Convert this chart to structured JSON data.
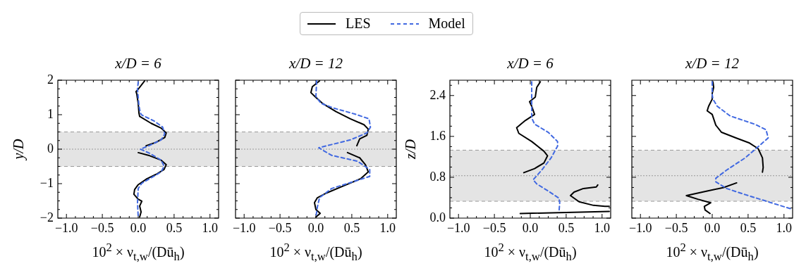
{
  "chart_data": [
    {
      "type": "line",
      "title": "x/D = 6",
      "xlabel": "10$^{2}$ × ν$_{t,w}$/(Dū$_{h}$)",
      "ylabel": "y/D",
      "legend": "top",
      "xlim": [
        -1.12,
        1.12
      ],
      "xticks": [
        {
          "value": -1,
          "label": "−1.0"
        },
        {
          "value": -0.5,
          "label": "−0.5"
        },
        {
          "value": 0,
          "label": "0.0"
        },
        {
          "value": 0.5,
          "label": "0.5"
        },
        {
          "value": 1,
          "label": "1.0"
        }
      ],
      "ylim": [
        -2,
        2
      ],
      "yticks": [
        {
          "value": -2,
          "label": "−2"
        },
        {
          "value": -1,
          "label": "−1"
        },
        {
          "value": 0,
          "label": "0"
        },
        {
          "value": 1,
          "label": "1"
        },
        {
          "value": 2,
          "label": "2"
        }
      ],
      "bands": [
        {
          "axis": "y",
          "from": -0.5,
          "to": 0.5,
          "color": "#e4e4e4"
        }
      ],
      "ref_lines": [
        {
          "axis": "y",
          "value": 0,
          "color": "#999999",
          "line_style": "dotted"
        },
        {
          "axis": "y",
          "value": -0.5,
          "color": "#999999",
          "line_style": "dashed"
        },
        {
          "axis": "y",
          "value": 0.5,
          "color": "#999999",
          "line_style": "dashed"
        }
      ],
      "series": [
        {
          "name": "LES",
          "color": "#000000",
          "line_style": "solid",
          "x": [
            0.09,
            0.0,
            -0.03,
            -0.02,
            0.0,
            0.01,
            0.02,
            0.18,
            0.32,
            0.39,
            0.37,
            0.25,
            0.11,
            null,
            0.0,
            0.16,
            0.32,
            0.39,
            0.36,
            0.25,
            0.12,
            0.0,
            -0.05,
            -0.06,
            0.0,
            0.05,
            0.02,
            0.04,
            0.02
          ],
          "values": [
            1.98,
            1.74,
            1.67,
            1.6,
            1.33,
            1.05,
            0.95,
            0.75,
            0.61,
            0.47,
            0.34,
            0.2,
            0.1,
            null,
            -0.1,
            -0.19,
            -0.32,
            -0.45,
            -0.59,
            -0.73,
            -0.86,
            -1.03,
            -1.17,
            -1.31,
            -1.45,
            -1.51,
            -1.65,
            -1.82,
            -1.97
          ]
        },
        {
          "name": "Model",
          "color": "#4169e1",
          "line_style": "dashed",
          "x": [
            0.0,
            -0.01,
            0.01,
            0.03,
            0.05,
            0.22,
            0.34,
            0.37,
            0.32,
            0.16,
            0.03,
            0.16,
            0.32,
            0.36,
            0.32,
            0.18,
            0.05,
            0.0,
            -0.01,
            0.0
          ],
          "values": [
            1.95,
            1.74,
            1.26,
            1.05,
            0.99,
            0.82,
            0.64,
            0.44,
            0.27,
            0.11,
            0.0,
            -0.12,
            -0.32,
            -0.49,
            -0.66,
            -0.83,
            -0.99,
            -1.14,
            -1.55,
            -1.97
          ]
        }
      ]
    },
    {
      "type": "line",
      "title": "x/D = 12",
      "xlabel": "10$^{2}$ × ν$_{t,w}$/(Dū$_{h}$)",
      "tick_labels": "x",
      "xlim": [
        -1.12,
        1.12
      ],
      "xticks": [
        {
          "value": -1,
          "label": "−1.0"
        },
        {
          "value": -0.5,
          "label": "−0.5"
        },
        {
          "value": 0,
          "label": "0.0"
        },
        {
          "value": 0.5,
          "label": "0.5"
        },
        {
          "value": 1,
          "label": "1.0"
        }
      ],
      "ylim": [
        -2,
        2
      ],
      "yticks": [
        -2,
        -1,
        0,
        1,
        2
      ],
      "bands": [
        {
          "axis": "y",
          "from": -0.5,
          "to": 0.5,
          "color": "#e4e4e4"
        }
      ],
      "ref_lines": [
        {
          "axis": "y",
          "value": 0,
          "color": "#999999",
          "line_style": "dotted"
        },
        {
          "axis": "y",
          "value": -0.5,
          "color": "#999999",
          "line_style": "dashed"
        },
        {
          "axis": "y",
          "value": 0.5,
          "color": "#999999",
          "line_style": "dashed"
        }
      ],
      "series": [
        {
          "color": "#000000",
          "line_style": "solid",
          "x": [
            0.05,
            -0.05,
            -0.07,
            0.0,
            0.09,
            0.28,
            0.48,
            0.67,
            0.73,
            0.71,
            0.61,
            0.57,
            null,
            0.44,
            0.61,
            0.69,
            0.73,
            0.62,
            0.38,
            0.15,
            0.02,
            -0.02,
            0.0,
            0.06,
            0.0
          ],
          "values": [
            1.98,
            1.81,
            1.64,
            1.5,
            1.33,
            1.09,
            0.88,
            0.71,
            0.58,
            0.4,
            0.3,
            0.1,
            null,
            -0.1,
            -0.25,
            -0.45,
            -0.66,
            -0.86,
            -1.07,
            -1.27,
            -1.41,
            -1.55,
            -1.75,
            -1.86,
            -1.97
          ]
        },
        {
          "color": "#4169e1",
          "line_style": "dashed",
          "x": [
            0.01,
            0.0,
            0.07,
            0.25,
            0.54,
            0.74,
            0.76,
            0.71,
            0.48,
            0.04,
            0.22,
            0.58,
            0.75,
            0.75,
            0.54,
            0.22,
            0.05,
            0.02,
            0.0
          ],
          "values": [
            1.98,
            1.53,
            1.33,
            1.19,
            1.02,
            0.88,
            0.64,
            0.47,
            0.27,
            0.04,
            -0.18,
            -0.35,
            -0.59,
            -0.79,
            -0.93,
            -1.14,
            -1.41,
            -1.68,
            -1.97
          ]
        }
      ]
    },
    {
      "type": "line",
      "title": "x/D = 6",
      "xlabel": "10$^{2}$ × ν$_{t,w}$/(Dū$_{h}$)",
      "ylabel": "z/D",
      "xlim": [
        -1.12,
        1.12
      ],
      "xticks": [
        {
          "value": -1,
          "label": "−1.0"
        },
        {
          "value": -0.5,
          "label": "−0.5"
        },
        {
          "value": 0,
          "label": "0.0"
        },
        {
          "value": 0.5,
          "label": "0.5"
        },
        {
          "value": 1,
          "label": "1.0"
        }
      ],
      "ylim": [
        0,
        2.7
      ],
      "yticks": [
        {
          "value": 0,
          "label": "0.0"
        },
        0.8,
        1.6,
        2.4
      ],
      "bands": [
        {
          "axis": "y",
          "from": 0.33,
          "to": 1.33,
          "color": "#e4e4e4"
        }
      ],
      "ref_lines": [
        {
          "axis": "y",
          "value": 0.83,
          "color": "#999999",
          "line_style": "dotted"
        },
        {
          "axis": "y",
          "value": 0.33,
          "color": "#999999",
          "line_style": "dashed"
        },
        {
          "axis": "y",
          "value": 1.33,
          "color": "#999999",
          "line_style": "dashed"
        }
      ],
      "series": [
        {
          "color": "#000000",
          "line_style": "solid",
          "x": [
            0.14,
            0.09,
            0.07,
            -0.01,
            0.02,
            0.06,
            -0.07,
            -0.19,
            -0.16,
            0.02,
            0.19,
            0.24,
            0.19,
            0.06,
            -0.09,
            null,
            0.94,
            0.92,
            0.74,
            0.61,
            0.56,
            0.68,
            0.88,
            1.04,
            1.1,
            null,
            -0.14,
            1.1
          ],
          "values": [
            2.67,
            2.56,
            2.37,
            2.28,
            2.19,
            2.03,
            1.91,
            1.77,
            1.66,
            1.5,
            1.31,
            1.22,
            1.08,
            0.97,
            0.89,
            null,
            0.65,
            0.61,
            0.58,
            0.51,
            0.44,
            0.32,
            0.25,
            0.23,
            0.23,
            null,
            0.09,
            0.13
          ]
        },
        {
          "color": "#4169e1",
          "line_style": "dashed",
          "x": [
            0.02,
            0.02,
            0.06,
            0.25,
            0.38,
            0.38,
            0.29,
            0.16,
            0.04,
            0.09,
            0.25,
            0.4,
            0.41,
            0.4
          ],
          "values": [
            2.67,
            1.96,
            1.84,
            1.68,
            1.5,
            1.41,
            1.18,
            0.94,
            0.75,
            0.67,
            0.53,
            0.39,
            0.3,
            0.12
          ]
        }
      ]
    },
    {
      "type": "line",
      "title": "x/D = 12",
      "xlabel": "10$^{2}$ × ν$_{t,w}$/(Dū$_{h}$)",
      "tick_labels": "x",
      "xlim": [
        -1.12,
        1.12
      ],
      "xticks": [
        {
          "value": -1,
          "label": "−1.0"
        },
        {
          "value": -0.5,
          "label": "−0.5"
        },
        {
          "value": 0,
          "label": "0.0"
        },
        {
          "value": 0.5,
          "label": "0.5"
        },
        {
          "value": 1,
          "label": "1.0"
        }
      ],
      "ylim": [
        0,
        2.7
      ],
      "yticks": [
        0,
        0.8,
        1.6,
        2.4
      ],
      "bands": [
        {
          "axis": "y",
          "from": 0.33,
          "to": 1.33,
          "color": "#e4e4e4"
        }
      ],
      "ref_lines": [
        {
          "axis": "y",
          "value": 0.83,
          "color": "#999999",
          "line_style": "dotted"
        },
        {
          "axis": "y",
          "value": 0.33,
          "color": "#999999",
          "line_style": "dashed"
        },
        {
          "axis": "y",
          "value": 1.33,
          "color": "#999999",
          "line_style": "dashed"
        }
      ],
      "series": [
        {
          "color": "#000000",
          "line_style": "solid",
          "x": [
            0.01,
            0.02,
            0.0,
            0.0,
            -0.05,
            -0.07,
            0.0,
            0.05,
            0.13,
            0.33,
            0.52,
            0.64,
            0.7,
            0.71,
            0.7,
            null,
            0.34,
            0.16,
            -0.07,
            -0.36,
            -0.2,
            -0.02,
            -0.11,
            -0.1,
            -0.03
          ],
          "values": [
            2.67,
            2.56,
            2.44,
            2.33,
            2.19,
            2.1,
            2.03,
            1.82,
            1.68,
            1.57,
            1.47,
            1.36,
            1.18,
            0.99,
            0.9,
            null,
            0.69,
            0.6,
            0.53,
            0.44,
            0.37,
            0.3,
            0.23,
            0.16,
            0.09
          ]
        },
        {
          "color": "#4169e1",
          "line_style": "dashed",
          "x": [
            0.0,
            0.0,
            0.01,
            0.07,
            0.25,
            0.59,
            0.75,
            0.78,
            0.65,
            0.46,
            0.2,
            0.05,
            0.05,
            0.2,
            0.46,
            0.78,
            1.1
          ],
          "values": [
            2.67,
            2.42,
            2.33,
            2.19,
            2.0,
            1.84,
            1.73,
            1.57,
            1.41,
            1.18,
            0.94,
            0.78,
            0.71,
            0.58,
            0.46,
            0.32,
            0.18
          ]
        }
      ]
    }
  ]
}
